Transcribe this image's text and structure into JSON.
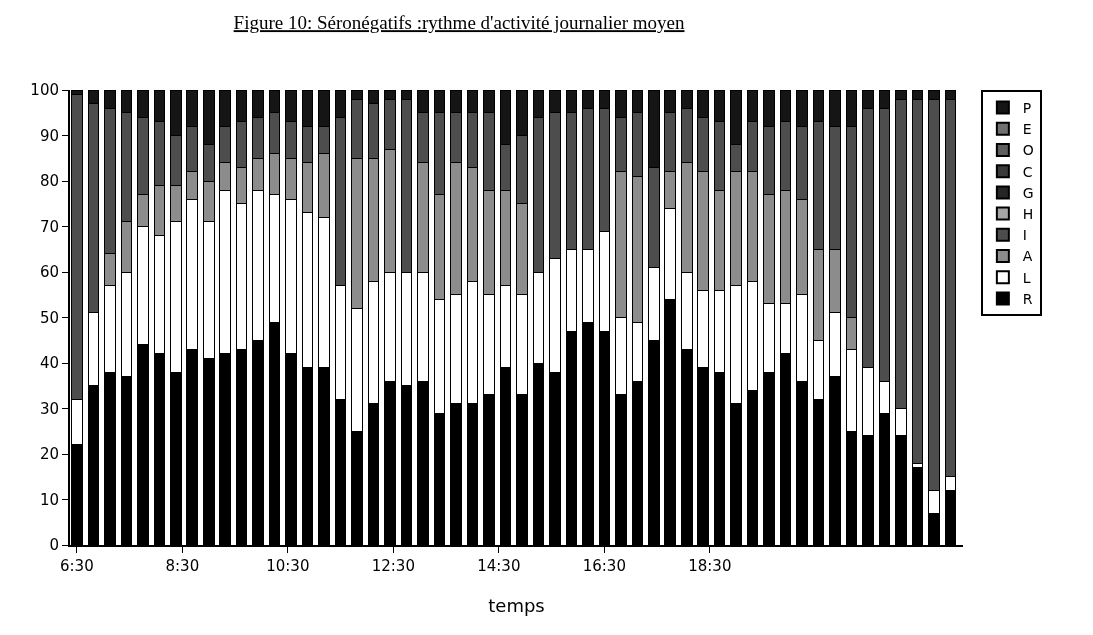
{
  "chart_data": {
    "type": "bar",
    "stacked": true,
    "title": "Figure 10: Séronégatifs :rythme d'activité journalier moyen",
    "xlabel": "temps",
    "x": [
      6.5,
      6.8125,
      7.125,
      7.4375,
      7.75,
      8.0625,
      8.375,
      8.6875,
      9,
      9.3125,
      9.625,
      9.9375,
      10.25,
      10.5625,
      10.875,
      11.1875,
      11.5,
      11.8125,
      12.125,
      12.4375,
      12.75,
      13.0625,
      13.375,
      13.6875,
      14,
      14.3125,
      14.625,
      14.9375,
      15.25,
      15.5625,
      15.875,
      16.1875,
      16.5,
      16.8125,
      17.125,
      17.4375,
      17.75,
      18.0625,
      18.375,
      18.6875,
      19,
      19.3125,
      19.625,
      19.9375,
      20.25,
      20.5625,
      20.875,
      21.1875,
      21.5,
      21.8125,
      22.125,
      22.4375,
      22.75,
      23.0625
    ],
    "xlim": [
      6.37,
      23.3
    ],
    "xticks": [
      {
        "value": 6.5,
        "label": "6:30"
      },
      {
        "value": 8.5,
        "label": "8:30"
      },
      {
        "value": 10.5,
        "label": "10:30"
      },
      {
        "value": 12.5,
        "label": "12:30"
      },
      {
        "value": 14.5,
        "label": "14:30"
      },
      {
        "value": 16.5,
        "label": "16:30"
      },
      {
        "value": 18.5,
        "label": "18:30"
      }
    ],
    "ylim": [
      0,
      100
    ],
    "yticks": [
      0,
      10,
      20,
      30,
      40,
      50,
      60,
      70,
      80,
      90,
      100
    ],
    "legend": "right",
    "series": [
      {
        "name": "R",
        "color": "#000000",
        "values": [
          22,
          35,
          38,
          37,
          44,
          42,
          38,
          43,
          41,
          42,
          43,
          45,
          49,
          42,
          39,
          39,
          32,
          25,
          31,
          36,
          35,
          36,
          29,
          31,
          31,
          33,
          39,
          33,
          40,
          38,
          47,
          49,
          47,
          33,
          36,
          45,
          54,
          43,
          39,
          38,
          31,
          34,
          38,
          42,
          36,
          32,
          37,
          25,
          24,
          29,
          24,
          17,
          7,
          12
        ]
      },
      {
        "name": "L",
        "color": "#ffffff",
        "values": [
          10,
          16,
          19,
          23,
          26,
          26,
          33,
          33,
          30,
          36,
          32,
          33,
          28,
          34,
          34,
          33,
          25,
          27,
          27,
          24,
          25,
          24,
          25,
          24,
          27,
          22,
          18,
          22,
          20,
          25,
          18,
          16,
          22,
          17,
          13,
          16,
          20,
          17,
          17,
          18,
          26,
          24,
          15,
          11,
          19,
          13,
          14,
          18,
          15,
          7,
          6,
          1,
          5,
          3
        ]
      },
      {
        "name": "A",
        "color": "#8c8c8c",
        "values": [
          0,
          0,
          7,
          11,
          7,
          11,
          8,
          6,
          9,
          6,
          8,
          7,
          9,
          9,
          11,
          14,
          0,
          33,
          27,
          27,
          0,
          24,
          23,
          29,
          25,
          23,
          21,
          20,
          0,
          0,
          0,
          0,
          0,
          32,
          32,
          0,
          8,
          24,
          26,
          22,
          25,
          24,
          24,
          25,
          21,
          20,
          14,
          7,
          0,
          0,
          0,
          0,
          0,
          0
        ]
      },
      {
        "name": "I",
        "color": "#4d4d4d",
        "values": [
          67,
          46,
          32,
          24,
          17,
          14,
          11,
          10,
          8,
          8,
          10,
          9,
          9,
          8,
          8,
          6,
          37,
          13,
          12,
          11,
          38,
          11,
          18,
          11,
          12,
          17,
          10,
          15,
          34,
          32,
          30,
          31,
          27,
          12,
          14,
          22,
          13,
          12,
          12,
          15,
          6,
          11,
          15,
          15,
          16,
          28,
          27,
          42,
          57,
          60,
          68,
          80,
          86,
          83
        ]
      },
      {
        "name": "H",
        "color": "#a6a6a6",
        "values": [
          0,
          0,
          0,
          0,
          0,
          0,
          0,
          0,
          0,
          0,
          0,
          0,
          0,
          0,
          0,
          0,
          0,
          0,
          0,
          0,
          0,
          0,
          0,
          0,
          0,
          0,
          0,
          0,
          0,
          0,
          0,
          0,
          0,
          0,
          0,
          0,
          0,
          0,
          0,
          0,
          0,
          0,
          0,
          0,
          0,
          0,
          0,
          0,
          0,
          0,
          0,
          0,
          0,
          0
        ]
      },
      {
        "name": "G",
        "color": "#262626",
        "values": [
          0,
          0,
          0,
          0,
          0,
          0,
          0,
          0,
          0,
          0,
          0,
          0,
          0,
          0,
          0,
          0,
          0,
          0,
          0,
          0,
          0,
          0,
          0,
          0,
          0,
          0,
          0,
          0,
          0,
          0,
          0,
          0,
          0,
          0,
          0,
          0,
          0,
          0,
          0,
          0,
          0,
          0,
          0,
          0,
          0,
          0,
          0,
          0,
          0,
          0,
          0,
          0,
          0,
          0
        ]
      },
      {
        "name": "C",
        "color": "#3a3a3a",
        "values": [
          0,
          0,
          0,
          0,
          0,
          0,
          0,
          0,
          0,
          0,
          0,
          0,
          0,
          0,
          0,
          0,
          0,
          0,
          0,
          0,
          0,
          0,
          0,
          0,
          0,
          0,
          0,
          0,
          0,
          0,
          0,
          0,
          0,
          0,
          0,
          0,
          0,
          0,
          0,
          0,
          0,
          0,
          0,
          0,
          0,
          0,
          0,
          0,
          0,
          0,
          0,
          0,
          0,
          0
        ]
      },
      {
        "name": "O",
        "color": "#5e5e5e",
        "values": [
          0,
          0,
          0,
          0,
          0,
          0,
          0,
          0,
          0,
          0,
          0,
          0,
          0,
          0,
          0,
          0,
          0,
          0,
          0,
          0,
          0,
          0,
          0,
          0,
          0,
          0,
          0,
          0,
          0,
          0,
          0,
          0,
          0,
          0,
          0,
          0,
          0,
          0,
          0,
          0,
          0,
          0,
          0,
          0,
          0,
          0,
          0,
          0,
          0,
          0,
          0,
          0,
          0,
          0
        ]
      },
      {
        "name": "E",
        "color": "#707070",
        "values": [
          0,
          0,
          0,
          0,
          0,
          0,
          0,
          0,
          0,
          0,
          0,
          0,
          0,
          0,
          0,
          0,
          0,
          0,
          0,
          0,
          0,
          0,
          0,
          0,
          0,
          0,
          0,
          0,
          0,
          0,
          0,
          0,
          0,
          0,
          0,
          0,
          0,
          0,
          0,
          0,
          0,
          0,
          0,
          0,
          0,
          0,
          0,
          0,
          0,
          0,
          0,
          0,
          0,
          0
        ]
      },
      {
        "name": "P",
        "color": "#151515",
        "values": [
          1,
          3,
          4,
          5,
          6,
          7,
          10,
          8,
          12,
          8,
          7,
          6,
          5,
          7,
          8,
          8,
          6,
          2,
          3,
          2,
          2,
          5,
          5,
          5,
          5,
          5,
          12,
          10,
          6,
          5,
          5,
          4,
          4,
          6,
          5,
          17,
          5,
          4,
          6,
          7,
          12,
          7,
          8,
          7,
          8,
          7,
          8,
          8,
          4,
          4,
          2,
          2,
          2,
          2
        ]
      }
    ]
  }
}
